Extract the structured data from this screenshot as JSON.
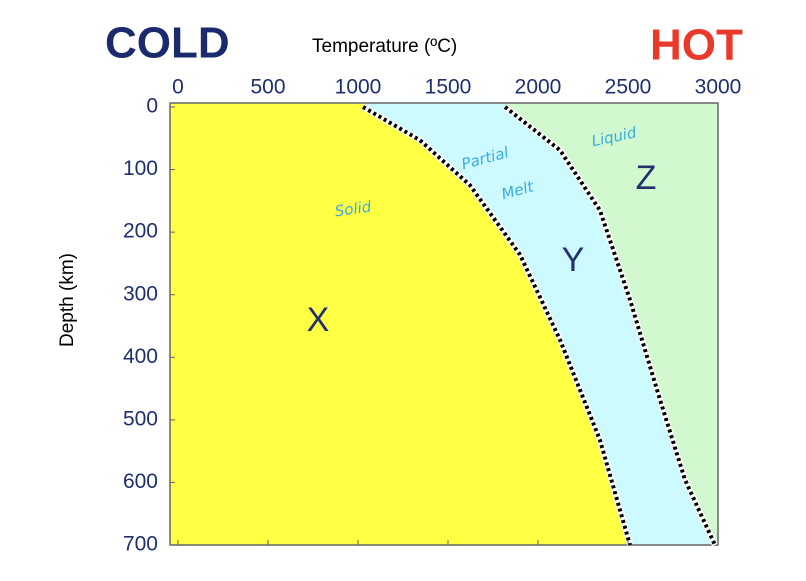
{
  "chart_data": {
    "type": "phase",
    "cold_label": "COLD",
    "hot_label": "HOT",
    "x_label": "Temperature (ºC)",
    "y_label": "Depth (km)",
    "xlim": [
      0,
      3000
    ],
    "ylim": [
      0,
      700
    ],
    "xticks": [
      0,
      500,
      1000,
      1500,
      2000,
      2500,
      3000
    ],
    "yticks": [
      0,
      100,
      200,
      300,
      400,
      500,
      600,
      700
    ],
    "boundaries": [
      {
        "x": [
          1028,
          1344,
          1622,
          1900,
          2122,
          2344,
          2511
        ],
        "y": [
          0,
          53,
          125,
          236,
          372,
          532,
          700
        ]
      },
      {
        "x": [
          1817,
          2122,
          2344,
          2511,
          2678,
          2817,
          2983
        ],
        "y": [
          0,
          69,
          165,
          308,
          468,
          596,
          700
        ]
      }
    ],
    "regions": [
      {
        "label": "X",
        "note": [
          "Solid"
        ],
        "color": "#ffff44"
      },
      {
        "label": "Y",
        "note": [
          "Partial",
          "Melt"
        ],
        "color": "#cdfaff"
      },
      {
        "label": "Z",
        "note": [
          "Liquid"
        ],
        "color": "#d2f8cf"
      }
    ]
  }
}
